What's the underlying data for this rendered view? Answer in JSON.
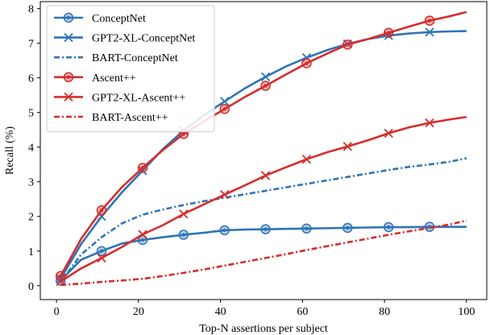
{
  "chart_data": {
    "type": "line",
    "title": "",
    "xlabel": "Top-N assertions per subject",
    "ylabel": "Recall (%)",
    "xlim": [
      -3.95,
      104.95
    ],
    "ylim": [
      -0.4,
      8.2
    ],
    "xticks": [
      0,
      20,
      40,
      60,
      80,
      100
    ],
    "yticks": [
      0,
      1,
      2,
      3,
      4,
      5,
      6,
      7,
      8
    ],
    "grid": false,
    "legend_position": "top-left",
    "colors": {
      "conceptnet": "#2f74b5",
      "ascent": "#d62d2d"
    },
    "series": [
      {
        "name": "ConceptNet",
        "color": "#2f74b5",
        "style": "solid",
        "marker": "circle",
        "x": [
          1,
          6,
          11,
          16,
          21,
          26,
          31,
          36,
          41,
          46,
          51,
          56,
          61,
          66,
          71,
          76,
          81,
          86,
          91,
          96,
          100
        ],
        "values": [
          0.15,
          0.75,
          1.0,
          1.22,
          1.32,
          1.4,
          1.47,
          1.53,
          1.6,
          1.62,
          1.63,
          1.64,
          1.65,
          1.66,
          1.67,
          1.68,
          1.69,
          1.69,
          1.7,
          1.7,
          1.7
        ],
        "marker_indices": [
          0,
          2,
          4,
          6,
          8,
          10,
          12,
          14,
          16,
          18
        ]
      },
      {
        "name": "GPT2-XL-ConceptNet",
        "color": "#2f74b5",
        "style": "solid",
        "marker": "x",
        "x": [
          1,
          6,
          11,
          16,
          21,
          26,
          31,
          36,
          41,
          46,
          51,
          56,
          61,
          66,
          71,
          76,
          81,
          86,
          91,
          96,
          100
        ],
        "values": [
          0.2,
          1.2,
          2.0,
          2.7,
          3.32,
          3.95,
          4.48,
          4.92,
          5.32,
          5.7,
          6.03,
          6.33,
          6.58,
          6.8,
          6.98,
          7.12,
          7.22,
          7.28,
          7.32,
          7.34,
          7.35
        ],
        "marker_indices": [
          0,
          2,
          4,
          6,
          8,
          10,
          12,
          14,
          16,
          18
        ]
      },
      {
        "name": "BART-ConceptNet",
        "color": "#2f74b5",
        "style": "dashdot",
        "marker": "none",
        "x": [
          1,
          6,
          11,
          16,
          21,
          26,
          31,
          36,
          41,
          46,
          51,
          56,
          61,
          66,
          71,
          76,
          81,
          86,
          91,
          96,
          100
        ],
        "values": [
          0.1,
          0.9,
          1.4,
          1.8,
          2.05,
          2.2,
          2.33,
          2.44,
          2.54,
          2.64,
          2.74,
          2.84,
          2.94,
          3.04,
          3.14,
          3.24,
          3.34,
          3.43,
          3.5,
          3.58,
          3.68
        ],
        "marker_indices": []
      },
      {
        "name": "Ascent++",
        "color": "#d62d2d",
        "style": "solid",
        "marker": "circle",
        "x": [
          1,
          6,
          11,
          16,
          21,
          26,
          31,
          36,
          41,
          46,
          51,
          56,
          61,
          66,
          71,
          76,
          81,
          86,
          91,
          96,
          100
        ],
        "values": [
          0.28,
          1.35,
          2.18,
          2.85,
          3.4,
          3.92,
          4.38,
          4.75,
          5.1,
          5.45,
          5.77,
          6.1,
          6.42,
          6.7,
          6.96,
          7.12,
          7.3,
          7.48,
          7.65,
          7.78,
          7.9
        ],
        "marker_indices": [
          0,
          2,
          4,
          6,
          8,
          10,
          12,
          14,
          16,
          18
        ]
      },
      {
        "name": "GPT2-XL-Ascent++",
        "color": "#d62d2d",
        "style": "solid",
        "marker": "x",
        "x": [
          1,
          6,
          11,
          16,
          21,
          26,
          31,
          36,
          41,
          46,
          51,
          56,
          61,
          66,
          71,
          76,
          81,
          86,
          91,
          96,
          100
        ],
        "values": [
          0.12,
          0.5,
          0.8,
          1.12,
          1.48,
          1.75,
          2.07,
          2.35,
          2.63,
          2.9,
          3.18,
          3.42,
          3.65,
          3.85,
          4.02,
          4.2,
          4.4,
          4.57,
          4.7,
          4.8,
          4.87
        ],
        "marker_indices": [
          0,
          2,
          4,
          6,
          8,
          10,
          12,
          14,
          16,
          18
        ]
      },
      {
        "name": "BART-Ascent++",
        "color": "#d62d2d",
        "style": "dashdot",
        "marker": "none",
        "x": [
          1,
          6,
          11,
          16,
          21,
          26,
          31,
          36,
          41,
          46,
          51,
          56,
          61,
          66,
          71,
          76,
          81,
          86,
          91,
          96,
          100
        ],
        "values": [
          0.02,
          0.06,
          0.11,
          0.15,
          0.2,
          0.28,
          0.37,
          0.47,
          0.58,
          0.69,
          0.8,
          0.91,
          1.03,
          1.14,
          1.25,
          1.36,
          1.47,
          1.57,
          1.67,
          1.77,
          1.88
        ],
        "marker_indices": []
      }
    ]
  }
}
